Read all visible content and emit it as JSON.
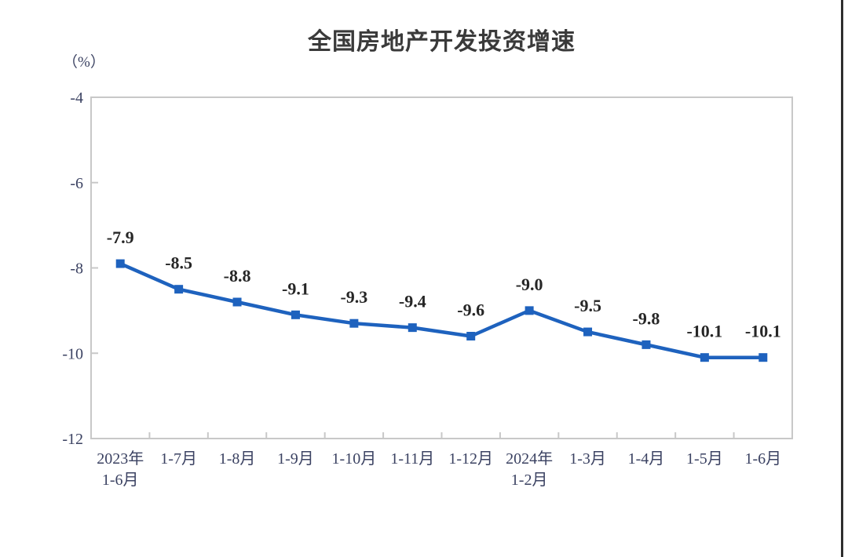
{
  "page": {
    "background": "#ffffff"
  },
  "chart_data": {
    "type": "line",
    "title": "全国房地产开发投资增速",
    "unit_label": "（%）",
    "categories": [
      "2023年\n1-6月",
      "1-7月",
      "1-8月",
      "1-9月",
      "1-10月",
      "1-11月",
      "1-12月",
      "2024年\n1-2月",
      "1-3月",
      "1-4月",
      "1-5月",
      "1-6月"
    ],
    "values": [
      -7.9,
      -8.5,
      -8.8,
      -9.1,
      -9.3,
      -9.4,
      -9.6,
      -9.0,
      -9.5,
      -9.8,
      -10.1,
      -10.1
    ],
    "ylim": [
      -12,
      -4
    ],
    "yticks": [
      -4,
      -6,
      -8,
      -10,
      -12
    ],
    "grid": false,
    "legend_position": "none",
    "marker": "square",
    "data_labels_shown": true,
    "colors": {
      "line": "#1e62be",
      "data_label": "#262626",
      "axis_text": "#3b4262",
      "axis_line": "#c8c8c8",
      "title_text": "#3a3a3a"
    }
  }
}
